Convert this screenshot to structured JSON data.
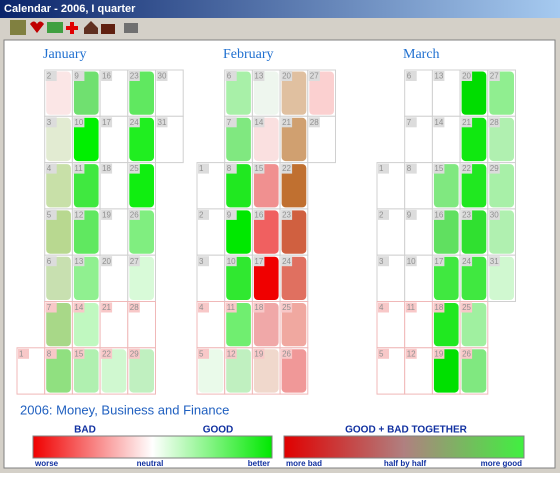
{
  "window": {
    "title": "Calendar - 2006, I quarter"
  },
  "months": [
    {
      "name": "January",
      "weeks": [
        [
          null,
          null,
          null,
          null,
          null,
          null,
          {
            "day": "1",
            "color": "#ffffff"
          }
        ],
        [
          {
            "day": "2",
            "color": "#fbe6e6"
          },
          {
            "day": "3",
            "color": "#e2ebd2"
          },
          {
            "day": "4",
            "color": "#c8e0a8"
          },
          {
            "day": "5",
            "color": "#b8d890"
          },
          {
            "day": "6",
            "color": "#c8e0b0"
          },
          {
            "day": "7",
            "color": "#a8d888"
          },
          {
            "day": "8",
            "color": "#90e080"
          }
        ],
        [
          {
            "day": "9",
            "color": "#70e070"
          },
          {
            "day": "10",
            "color": "#00f000"
          },
          {
            "day": "11",
            "color": "#40e840"
          },
          {
            "day": "12",
            "color": "#60e860"
          },
          {
            "day": "13",
            "color": "#90f090"
          },
          {
            "day": "14",
            "color": "#c0f8c0"
          },
          {
            "day": "15",
            "color": "#b0f0b0"
          }
        ],
        [
          {
            "day": "16",
            "color": "#ffffff"
          },
          {
            "day": "17",
            "color": "#ffffff"
          },
          {
            "day": "18",
            "color": "#ffffff"
          },
          {
            "day": "19",
            "color": "#ffffff"
          },
          {
            "day": "20",
            "color": "#ffffff"
          },
          {
            "day": "21",
            "color": "#ffffff"
          },
          {
            "day": "22",
            "color": "#d0f8d0"
          }
        ],
        [
          {
            "day": "23",
            "color": "#60e860"
          },
          {
            "day": "24",
            "color": "#20ee20"
          },
          {
            "day": "25",
            "color": "#10ee10"
          },
          {
            "day": "26",
            "color": "#80ee80"
          },
          {
            "day": "27",
            "color": "#d8fad8"
          },
          {
            "day": "28",
            "color": "#ffffff"
          },
          {
            "day": "29",
            "color": "#c0f0c0"
          }
        ],
        [
          {
            "day": "30",
            "color": "#ffffff"
          },
          {
            "day": "31",
            "color": "#ffffff"
          },
          null,
          null,
          null,
          null,
          null
        ]
      ]
    },
    {
      "name": "February",
      "weeks": [
        [
          null,
          null,
          {
            "day": "1",
            "color": "#ffffff"
          },
          {
            "day": "2",
            "color": "#ffffff"
          },
          {
            "day": "3",
            "color": "#ffffff"
          },
          {
            "day": "4",
            "color": "#ffffff"
          },
          {
            "day": "5",
            "color": "#eafaea"
          }
        ],
        [
          {
            "day": "6",
            "color": "#a8f0a8"
          },
          {
            "day": "7",
            "color": "#80e880"
          },
          {
            "day": "8",
            "color": "#20e820"
          },
          {
            "day": "9",
            "color": "#00e800"
          },
          {
            "day": "10",
            "color": "#30e830"
          },
          {
            "day": "11",
            "color": "#70ee70"
          },
          {
            "day": "12",
            "color": "#c0f0c0"
          }
        ],
        [
          {
            "day": "13",
            "color": "#eef6ee"
          },
          {
            "day": "14",
            "color": "#fae0e0"
          },
          {
            "day": "15",
            "color": "#f09090"
          },
          {
            "day": "16",
            "color": "#f06060"
          },
          {
            "day": "17",
            "color": "#f00000"
          },
          {
            "day": "18",
            "color": "#f0a8a8"
          },
          {
            "day": "19",
            "color": "#f0d8cc"
          }
        ],
        [
          {
            "day": "20",
            "color": "#e0c0a0"
          },
          {
            "day": "21",
            "color": "#d0a070"
          },
          {
            "day": "22",
            "color": "#c07030"
          },
          {
            "day": "23",
            "color": "#d06040"
          },
          {
            "day": "24",
            "color": "#e07060"
          },
          {
            "day": "25",
            "color": "#f0a8a0"
          },
          {
            "day": "26",
            "color": "#f09898"
          }
        ],
        [
          {
            "day": "27",
            "color": "#fbd0d0"
          },
          {
            "day": "28",
            "color": "#ffffff"
          },
          null,
          null,
          null,
          null,
          null
        ]
      ]
    },
    {
      "name": "March",
      "weeks": [
        [
          null,
          null,
          {
            "day": "1",
            "color": "#ffffff"
          },
          {
            "day": "2",
            "color": "#ffffff"
          },
          {
            "day": "3",
            "color": "#ffffff"
          },
          {
            "day": "4",
            "color": "#ffffff"
          },
          {
            "day": "5",
            "color": "#ffffff"
          }
        ],
        [
          {
            "day": "6",
            "color": "#ffffff"
          },
          {
            "day": "7",
            "color": "#ffffff"
          },
          {
            "day": "8",
            "color": "#ffffff"
          },
          {
            "day": "9",
            "color": "#ffffff"
          },
          {
            "day": "10",
            "color": "#ffffff"
          },
          {
            "day": "11",
            "color": "#ffffff"
          },
          {
            "day": "12",
            "color": "#ffffff"
          }
        ],
        [
          {
            "day": "13",
            "color": "#ffffff"
          },
          {
            "day": "14",
            "color": "#ffffff"
          },
          {
            "day": "15",
            "color": "#80e880"
          },
          {
            "day": "16",
            "color": "#60e060"
          },
          {
            "day": "17",
            "color": "#40e840"
          },
          {
            "day": "18",
            "color": "#20e820"
          },
          {
            "day": "19",
            "color": "#00e000"
          }
        ],
        [
          {
            "day": "20",
            "color": "#00dd00"
          },
          {
            "day": "21",
            "color": "#10e810"
          },
          {
            "day": "22",
            "color": "#20e820"
          },
          {
            "day": "23",
            "color": "#30e030"
          },
          {
            "day": "24",
            "color": "#40e840"
          },
          {
            "day": "25",
            "color": "#a0f0a0"
          },
          {
            "day": "26",
            "color": "#80e880"
          }
        ],
        [
          {
            "day": "27",
            "color": "#90ee90"
          },
          {
            "day": "28",
            "color": "#b0f0b0"
          },
          {
            "day": "29",
            "color": "#a8f0a8"
          },
          {
            "day": "30",
            "color": "#b0f0b0"
          },
          {
            "day": "31",
            "color": "#d0f8d0"
          },
          null,
          null
        ]
      ]
    }
  ],
  "footer": {
    "title": "2006: Money, Business and Finance",
    "legend1": {
      "left": "BAD",
      "right": "GOOD",
      "low": "worse",
      "mid": "neutral",
      "high": "better"
    },
    "legend2": {
      "title": "GOOD + BAD TOGETHER",
      "low": "more bad",
      "mid": "half by half",
      "high": "more good"
    }
  }
}
